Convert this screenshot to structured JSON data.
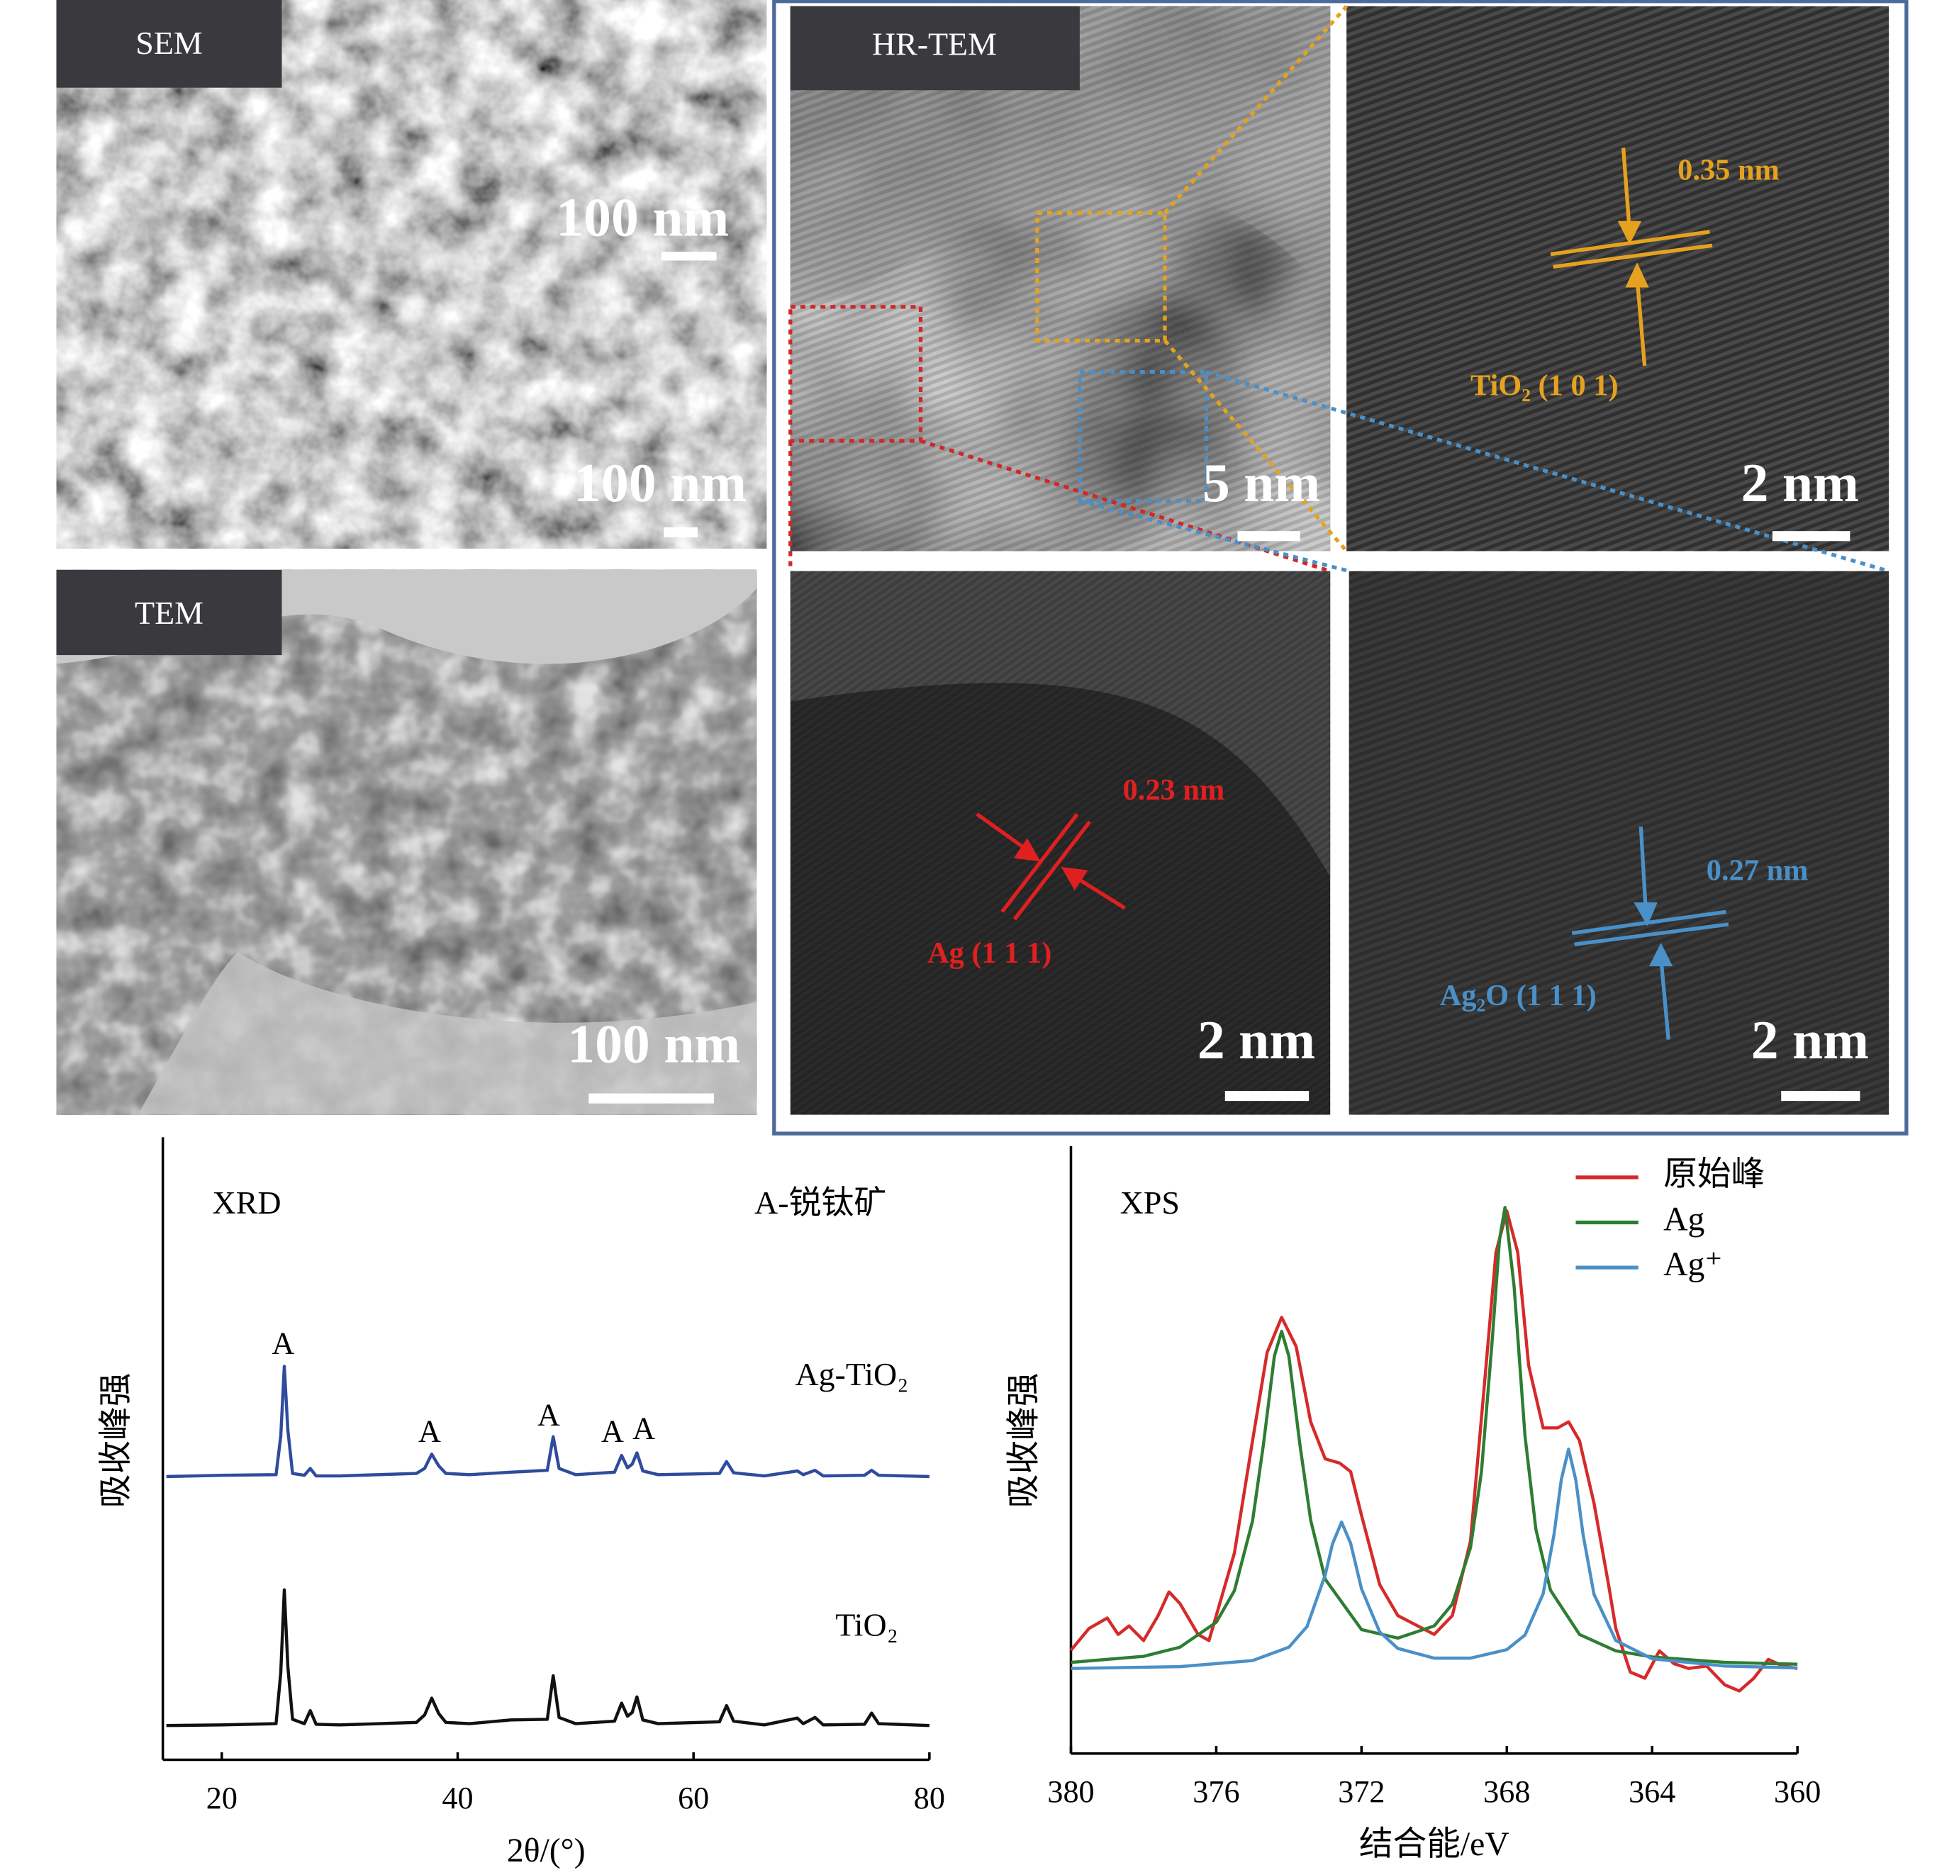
{
  "panels": {
    "sem": {
      "label": "SEM",
      "scale_bar": "100 nm",
      "inset_scale_bar": "100 nm"
    },
    "tem": {
      "label": "TEM",
      "scale_bar": "100 nm"
    },
    "hrtem": {
      "label": "HR-TEM",
      "scale_bar": "5 nm",
      "tio2_zoom": {
        "scale_bar": "2 nm",
        "spacing": "0.35 nm",
        "plane": "TiO₂ (1 0 1)"
      },
      "ag_zoom": {
        "scale_bar": "2 nm",
        "spacing": "0.23 nm",
        "plane": "Ag (1 1 1)"
      },
      "ag2o_zoom": {
        "scale_bar": "2 nm",
        "spacing": "0.27 nm",
        "plane": "Ag₂O (1 1 1)"
      }
    }
  },
  "chart_data": [
    {
      "type": "line",
      "title": "XRD",
      "annotation": "A-锐钛矿",
      "peak_labels": [
        "A",
        "A",
        "A",
        "A",
        "A"
      ],
      "x_label": "2θ/(°)",
      "y_label": "吸收峰强",
      "x": [
        15.3,
        20,
        24.6,
        25.0,
        25.3,
        25.6,
        26.0,
        27.0,
        27.5,
        28.0,
        30,
        36.5,
        37.2,
        37.8,
        38.4,
        39.0,
        41,
        44.5,
        47.6,
        48.1,
        48.6,
        50,
        53.3,
        53.9,
        54.4,
        54.8,
        55.2,
        55.7,
        57,
        62.2,
        62.8,
        63.4,
        66,
        68.8,
        69.3,
        70.3,
        71,
        74.5,
        75.1,
        75.7,
        80
      ],
      "series": [
        {
          "name": "Ag-TiO₂",
          "color": "#2f4b9c",
          "values": [
            45.5,
            45.7,
            45.8,
            52,
            63.2,
            53,
            46.0,
            45.7,
            46.8,
            45.6,
            45.6,
            46.0,
            46.8,
            49.1,
            47.2,
            46.0,
            45.8,
            46.2,
            46.5,
            51.9,
            46.8,
            45.8,
            46.2,
            48.9,
            46.9,
            47.5,
            49.3,
            46.4,
            45.8,
            46.0,
            47.9,
            46.1,
            45.6,
            46.4,
            45.8,
            46.5,
            45.6,
            45.7,
            46.5,
            45.7,
            45.5
          ]
        },
        {
          "name": "TiO₂",
          "color": "#111111",
          "values": [
            5.5,
            5.6,
            5.8,
            14,
            27.3,
            15,
            6.5,
            5.8,
            7.9,
            5.7,
            5.6,
            6.0,
            7.2,
            9.9,
            7.4,
            6.0,
            5.8,
            6.4,
            6.5,
            13.5,
            6.8,
            5.8,
            6.2,
            9.1,
            7.0,
            7.6,
            10.1,
            6.4,
            5.8,
            6.1,
            8.7,
            6.2,
            5.6,
            6.7,
            5.8,
            6.8,
            5.6,
            5.7,
            7.5,
            5.8,
            5.5
          ]
        }
      ],
      "xlim": [
        15,
        80
      ],
      "xticks": [
        20,
        40,
        60,
        80
      ],
      "ylim": [
        0,
        100
      ]
    },
    {
      "type": "line",
      "title": "XPS",
      "x_label": "结合能/eV",
      "y_label": "吸收峰强",
      "series": [
        {
          "name": "原始峰",
          "color": "#d62a2a",
          "x": [
            380,
            379.5,
            379,
            378.7,
            378.4,
            378,
            377.6,
            377.3,
            377,
            376.5,
            376.2,
            376,
            375.5,
            375,
            374.6,
            374.2,
            373.8,
            373.4,
            373.0,
            372.6,
            372.3,
            372,
            371.5,
            371,
            370,
            369.5,
            369,
            368.6,
            368.3,
            368.0,
            367.7,
            367.4,
            367.0,
            366.6,
            366.3,
            366.0,
            365.6,
            365.2,
            365,
            364.6,
            364.2,
            363.8,
            363.4,
            363,
            362.5,
            362,
            361.6,
            361.2,
            360.8,
            360.4,
            360
          ],
          "values": [
            17,
            20.6,
            22.3,
            19.6,
            21.0,
            18.6,
            22.7,
            26.6,
            24.7,
            19.6,
            18.6,
            22.7,
            33.0,
            51.5,
            66.0,
            71.8,
            67.0,
            54.6,
            48.5,
            47.8,
            46.4,
            39.2,
            27.8,
            22.7,
            19.6,
            22.7,
            35.0,
            61.9,
            82.5,
            89.3,
            82.5,
            63.9,
            53.6,
            53.6,
            54.6,
            51.5,
            41.2,
            27.8,
            20.6,
            13.4,
            12.4,
            16.9,
            14.8,
            14.0,
            14.4,
            11.3,
            10.3,
            12.4,
            15.5,
            14.4,
            14.0
          ]
        },
        {
          "name": "Ag",
          "color": "#2e7d32",
          "x": [
            380,
            378,
            377,
            376,
            375.5,
            375,
            374.7,
            374.4,
            374.2,
            374.0,
            373.7,
            373.4,
            373,
            372,
            371,
            370,
            369.5,
            369,
            368.7,
            368.4,
            368.2,
            368.05,
            367.8,
            367.5,
            367.2,
            366.8,
            366,
            365,
            364,
            362,
            360
          ],
          "values": [
            15.0,
            16.0,
            17.5,
            21.6,
            26.8,
            38.3,
            50.9,
            65.4,
            69.5,
            65.4,
            51.0,
            38.4,
            28.7,
            20.4,
            19.0,
            21.0,
            24.6,
            33.9,
            46.3,
            68.2,
            84.7,
            89.9,
            76.9,
            52.3,
            36.9,
            26.9,
            19.6,
            16.9,
            15.9,
            15.0,
            14.7
          ]
        },
        {
          "name": "Ag⁺",
          "color": "#4a90c8",
          "x": [
            380,
            377,
            375,
            374,
            373.5,
            373,
            372.8,
            372.55,
            372.3,
            372,
            371.5,
            371,
            370,
            369,
            368,
            367.5,
            367,
            366.7,
            366.5,
            366.3,
            366.1,
            365.9,
            365.6,
            365,
            364,
            362,
            360
          ],
          "values": [
            14.0,
            14.3,
            15.3,
            17.5,
            20.9,
            29.4,
            34.5,
            38.1,
            34.6,
            27.1,
            20.0,
            17.3,
            15.7,
            15.7,
            17.1,
            19.5,
            26.3,
            36.1,
            45.1,
            50.1,
            45.0,
            36.0,
            26.2,
            18.6,
            15.6,
            14.4,
            14.1
          ]
        }
      ],
      "xlim": [
        380,
        360
      ],
      "xticks": [
        380,
        376,
        372,
        368,
        364,
        360
      ],
      "ylim": [
        0,
        100
      ],
      "legend": "upper right"
    }
  ]
}
